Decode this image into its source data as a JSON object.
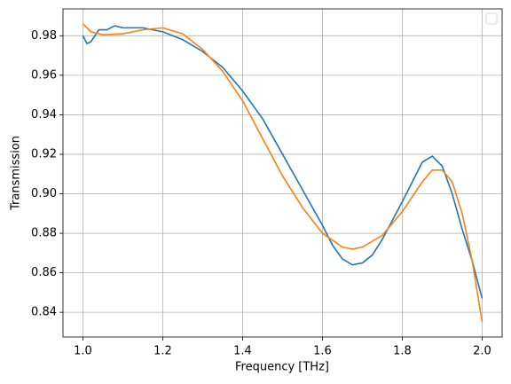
{
  "chart_data": {
    "type": "line",
    "x_label": "Frequency [THz]",
    "y_label": "Transmission",
    "series": [
      {
        "color": "#1f77b4",
        "x": [
          1.0,
          1.01,
          1.02,
          1.04,
          1.06,
          1.08,
          1.1,
          1.15,
          1.2,
          1.25,
          1.3,
          1.35,
          1.4,
          1.45,
          1.5,
          1.55,
          1.6,
          1.625,
          1.65,
          1.675,
          1.7,
          1.725,
          1.75,
          1.8,
          1.85,
          1.875,
          1.9,
          1.925,
          1.95,
          1.975,
          2.0
        ],
        "values": [
          0.98,
          0.976,
          0.977,
          0.983,
          0.983,
          0.985,
          0.984,
          0.984,
          0.982,
          0.978,
          0.972,
          0.964,
          0.952,
          0.938,
          0.92,
          0.902,
          0.884,
          0.874,
          0.867,
          0.864,
          0.865,
          0.869,
          0.877,
          0.896,
          0.916,
          0.919,
          0.914,
          0.9,
          0.882,
          0.866,
          0.847
        ]
      },
      {
        "color": "#ff7f0e",
        "x": [
          1.0,
          1.02,
          1.05,
          1.1,
          1.15,
          1.2,
          1.25,
          1.3,
          1.35,
          1.4,
          1.45,
          1.5,
          1.55,
          1.6,
          1.65,
          1.675,
          1.7,
          1.75,
          1.8,
          1.85,
          1.875,
          1.9,
          1.925,
          1.95,
          1.975,
          2.0
        ],
        "values": [
          0.986,
          0.982,
          0.9805,
          0.981,
          0.983,
          0.984,
          0.981,
          0.973,
          0.962,
          0.947,
          0.928,
          0.909,
          0.893,
          0.88,
          0.873,
          0.872,
          0.873,
          0.879,
          0.891,
          0.906,
          0.912,
          0.912,
          0.906,
          0.89,
          0.866,
          0.835
        ]
      }
    ],
    "xlim": [
      0.95,
      2.05
    ],
    "xticks": [
      {
        "value": 1.0,
        "label": "1.0"
      },
      {
        "value": 1.2,
        "label": "1.2"
      },
      {
        "value": 1.4,
        "label": "1.4"
      },
      {
        "value": 1.6,
        "label": "1.6"
      },
      {
        "value": 1.8,
        "label": "1.8"
      },
      {
        "value": 2.0,
        "label": "2.0"
      }
    ],
    "ylim": [
      0.8275,
      0.9936
    ],
    "yticks": [
      0.84,
      0.86,
      0.88,
      {
        "value": 0.9,
        "label": "0.90"
      },
      0.92,
      0.94,
      0.96,
      0.98
    ],
    "grid": true,
    "legend": "upper right"
  }
}
